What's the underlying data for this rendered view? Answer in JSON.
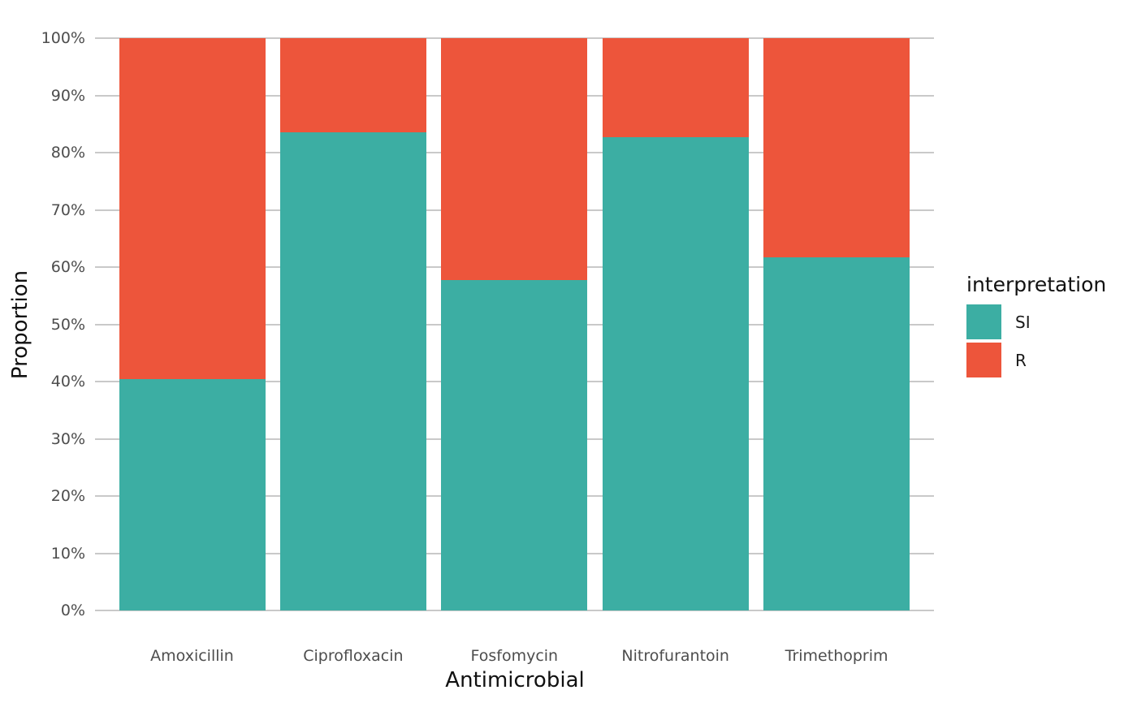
{
  "chart_data": {
    "type": "bar",
    "subtype": "stacked-percent",
    "title": "",
    "xlabel": "Antimicrobial",
    "ylabel": "Proportion",
    "categories": [
      "Amoxicillin",
      "Ciprofloxacin",
      "Fosfomycin",
      "Nitrofurantoin",
      "Trimethoprim"
    ],
    "series": [
      {
        "name": "SI",
        "color": "#3CAEA3",
        "values": [
          40.4,
          83.5,
          57.7,
          82.7,
          61.7
        ]
      },
      {
        "name": "R",
        "color": "#ED553B",
        "values": [
          59.6,
          16.5,
          42.3,
          17.3,
          38.3
        ]
      }
    ],
    "stack_order_bottom_to_top": [
      "SI",
      "R"
    ],
    "ylim": [
      0,
      100
    ],
    "y_ticks": [
      {
        "label": "0%",
        "value": 0
      },
      {
        "label": "10%",
        "value": 10
      },
      {
        "label": "20%",
        "value": 20
      },
      {
        "label": "30%",
        "value": 30
      },
      {
        "label": "40%",
        "value": 40
      },
      {
        "label": "50%",
        "value": 50
      },
      {
        "label": "60%",
        "value": 60
      },
      {
        "label": "70%",
        "value": 70
      },
      {
        "label": "80%",
        "value": 80
      },
      {
        "label": "90%",
        "value": 90
      },
      {
        "label": "100%",
        "value": 100
      }
    ],
    "grid": "horizontal",
    "legend": {
      "title": "interpretation",
      "position": "right",
      "items": [
        {
          "label": "SI",
          "color": "#3CAEA3"
        },
        {
          "label": "R",
          "color": "#ED553B"
        }
      ]
    },
    "colors": {
      "background": "#FFFFFF",
      "gridline": "#C9C9C9",
      "tick_label": "#4D4D4D",
      "axis_title": "#111111",
      "legend_title": "#111111",
      "legend_label": "#1A1A1A"
    }
  }
}
